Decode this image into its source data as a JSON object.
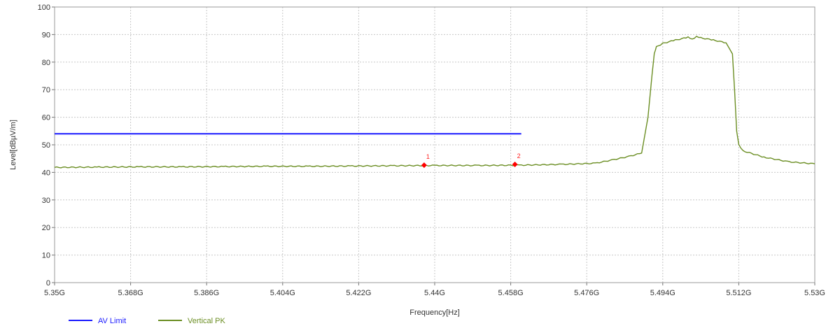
{
  "chart_data": {
    "type": "line",
    "xlabel": "Frequency[Hz]",
    "ylabel": "Level[dBµV/m]",
    "xlim": [
      5.35,
      5.53
    ],
    "ylim": [
      0,
      100
    ],
    "grid": true,
    "legend_position": "bottom-left",
    "x_ticks": [
      {
        "value": 5.35,
        "label": "5.35G"
      },
      {
        "value": 5.368,
        "label": "5.368G"
      },
      {
        "value": 5.386,
        "label": "5.386G"
      },
      {
        "value": 5.404,
        "label": "5.404G"
      },
      {
        "value": 5.422,
        "label": "5.422G"
      },
      {
        "value": 5.44,
        "label": "5.44G"
      },
      {
        "value": 5.458,
        "label": "5.458G"
      },
      {
        "value": 5.476,
        "label": "5.476G"
      },
      {
        "value": 5.494,
        "label": "5.494G"
      },
      {
        "value": 5.512,
        "label": "5.512G"
      },
      {
        "value": 5.53,
        "label": "5.53G"
      }
    ],
    "y_ticks": [
      {
        "value": 0,
        "label": "0"
      },
      {
        "value": 10,
        "label": "10"
      },
      {
        "value": 20,
        "label": "20"
      },
      {
        "value": 30,
        "label": "30"
      },
      {
        "value": 40,
        "label": "40"
      },
      {
        "value": 50,
        "label": "50"
      },
      {
        "value": 60,
        "label": "60"
      },
      {
        "value": 70,
        "label": "70"
      },
      {
        "value": 80,
        "label": "80"
      },
      {
        "value": 90,
        "label": "90"
      },
      {
        "value": 100,
        "label": "100"
      }
    ],
    "series": [
      {
        "name": "AV Limit",
        "color": "#1a1aff",
        "x": [
          5.35,
          5.4605
        ],
        "y": [
          54,
          54
        ]
      },
      {
        "name": "Vertical PK",
        "color": "#6b8e23",
        "x": [
          5.35,
          5.36,
          5.37,
          5.38,
          5.39,
          5.4,
          5.41,
          5.42,
          5.43,
          5.44,
          5.45,
          5.46,
          5.47,
          5.478,
          5.482,
          5.486,
          5.489,
          5.4905,
          5.4915,
          5.492,
          5.4925,
          5.494,
          5.497,
          5.5,
          5.501,
          5.502,
          5.503,
          5.506,
          5.509,
          5.5105,
          5.511,
          5.5115,
          5.512,
          5.513,
          5.518,
          5.524,
          5.53
        ],
        "y": [
          41.8,
          41.9,
          42.0,
          42.0,
          42.1,
          42.2,
          42.2,
          42.3,
          42.4,
          42.5,
          42.5,
          42.6,
          42.9,
          43.3,
          44.5,
          45.8,
          47.0,
          60.0,
          76.0,
          83.0,
          85.5,
          86.8,
          88.0,
          89.0,
          88.2,
          89.2,
          88.8,
          88.0,
          87.0,
          83.0,
          70.0,
          55.0,
          50.0,
          47.8,
          45.5,
          43.8,
          43.1
        ]
      }
    ],
    "markers": [
      {
        "label": "1",
        "x": 5.4375,
        "y": 42.6,
        "color": "#ff0000"
      },
      {
        "label": "2",
        "x": 5.459,
        "y": 42.9,
        "color": "#ff0000"
      }
    ],
    "legend": [
      {
        "name": "AV Limit",
        "color": "#1a1aff"
      },
      {
        "name": "Vertical PK",
        "color": "#6b8e23"
      }
    ]
  }
}
